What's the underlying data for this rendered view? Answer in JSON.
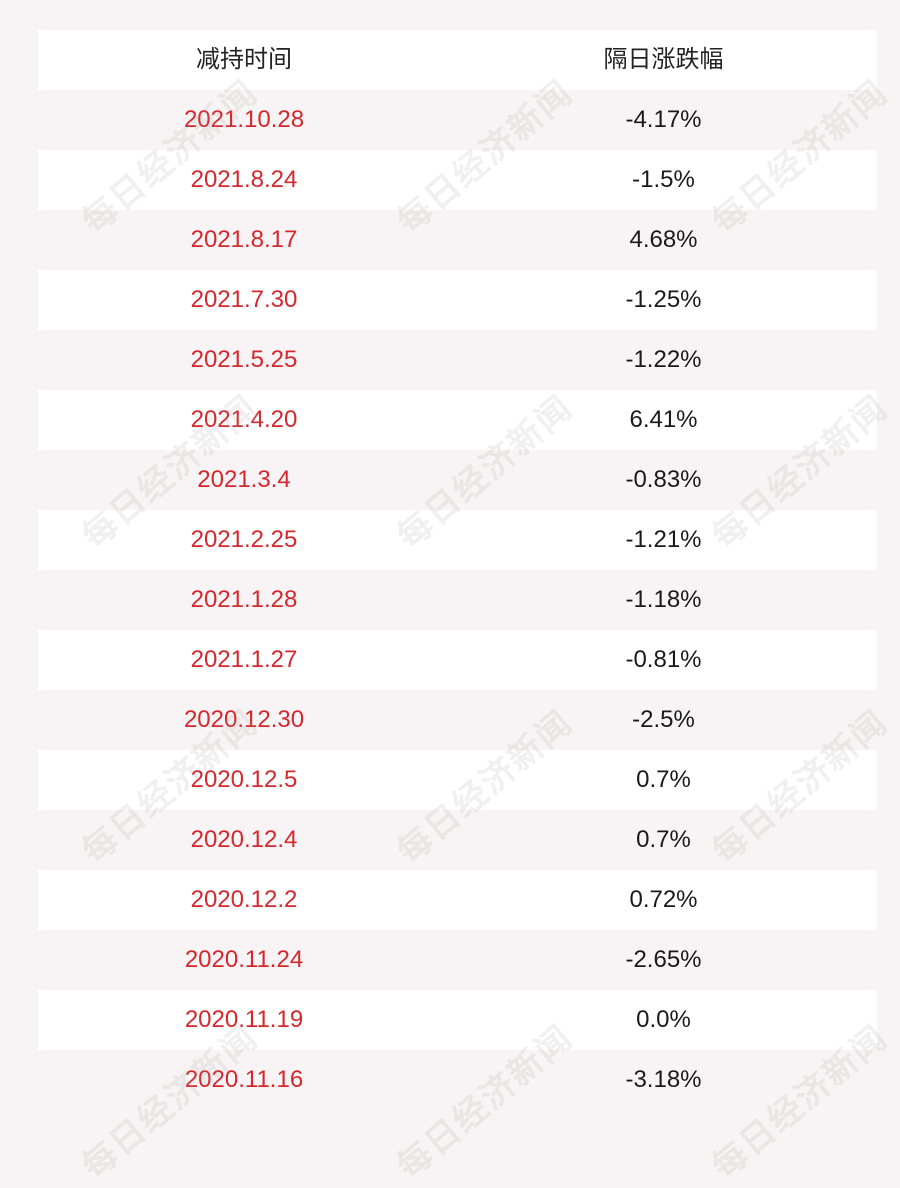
{
  "table": {
    "headers": {
      "date": "减持时间",
      "change": "隔日涨跌幅"
    },
    "rows": [
      {
        "date": "2021.10.28",
        "change": "-4.17%"
      },
      {
        "date": "2021.8.24",
        "change": "-1.5%"
      },
      {
        "date": "2021.8.17",
        "change": "4.68%"
      },
      {
        "date": "2021.7.30",
        "change": "-1.25%"
      },
      {
        "date": "2021.5.25",
        "change": "-1.22%"
      },
      {
        "date": "2021.4.20",
        "change": "6.41%"
      },
      {
        "date": "2021.3.4",
        "change": "-0.83%"
      },
      {
        "date": "2021.2.25",
        "change": "-1.21%"
      },
      {
        "date": "2021.1.28",
        "change": "-1.18%"
      },
      {
        "date": "2021.1.27",
        "change": "-0.81%"
      },
      {
        "date": "2020.12.30",
        "change": "-2.5%"
      },
      {
        "date": "2020.12.5",
        "change": "0.7%"
      },
      {
        "date": "2020.12.4",
        "change": "0.7%"
      },
      {
        "date": "2020.12.2",
        "change": "0.72%"
      },
      {
        "date": "2020.11.24",
        "change": "-2.65%"
      },
      {
        "date": "2020.11.19",
        "change": "0.0%"
      },
      {
        "date": "2020.11.16",
        "change": "-3.18%"
      }
    ]
  },
  "watermark": {
    "text": "每日经济新闻"
  },
  "colors": {
    "date_text": "#d4282e",
    "value_text": "#1a1a1a",
    "page_background": "#f8f3f4",
    "row_white": "#ffffff"
  }
}
